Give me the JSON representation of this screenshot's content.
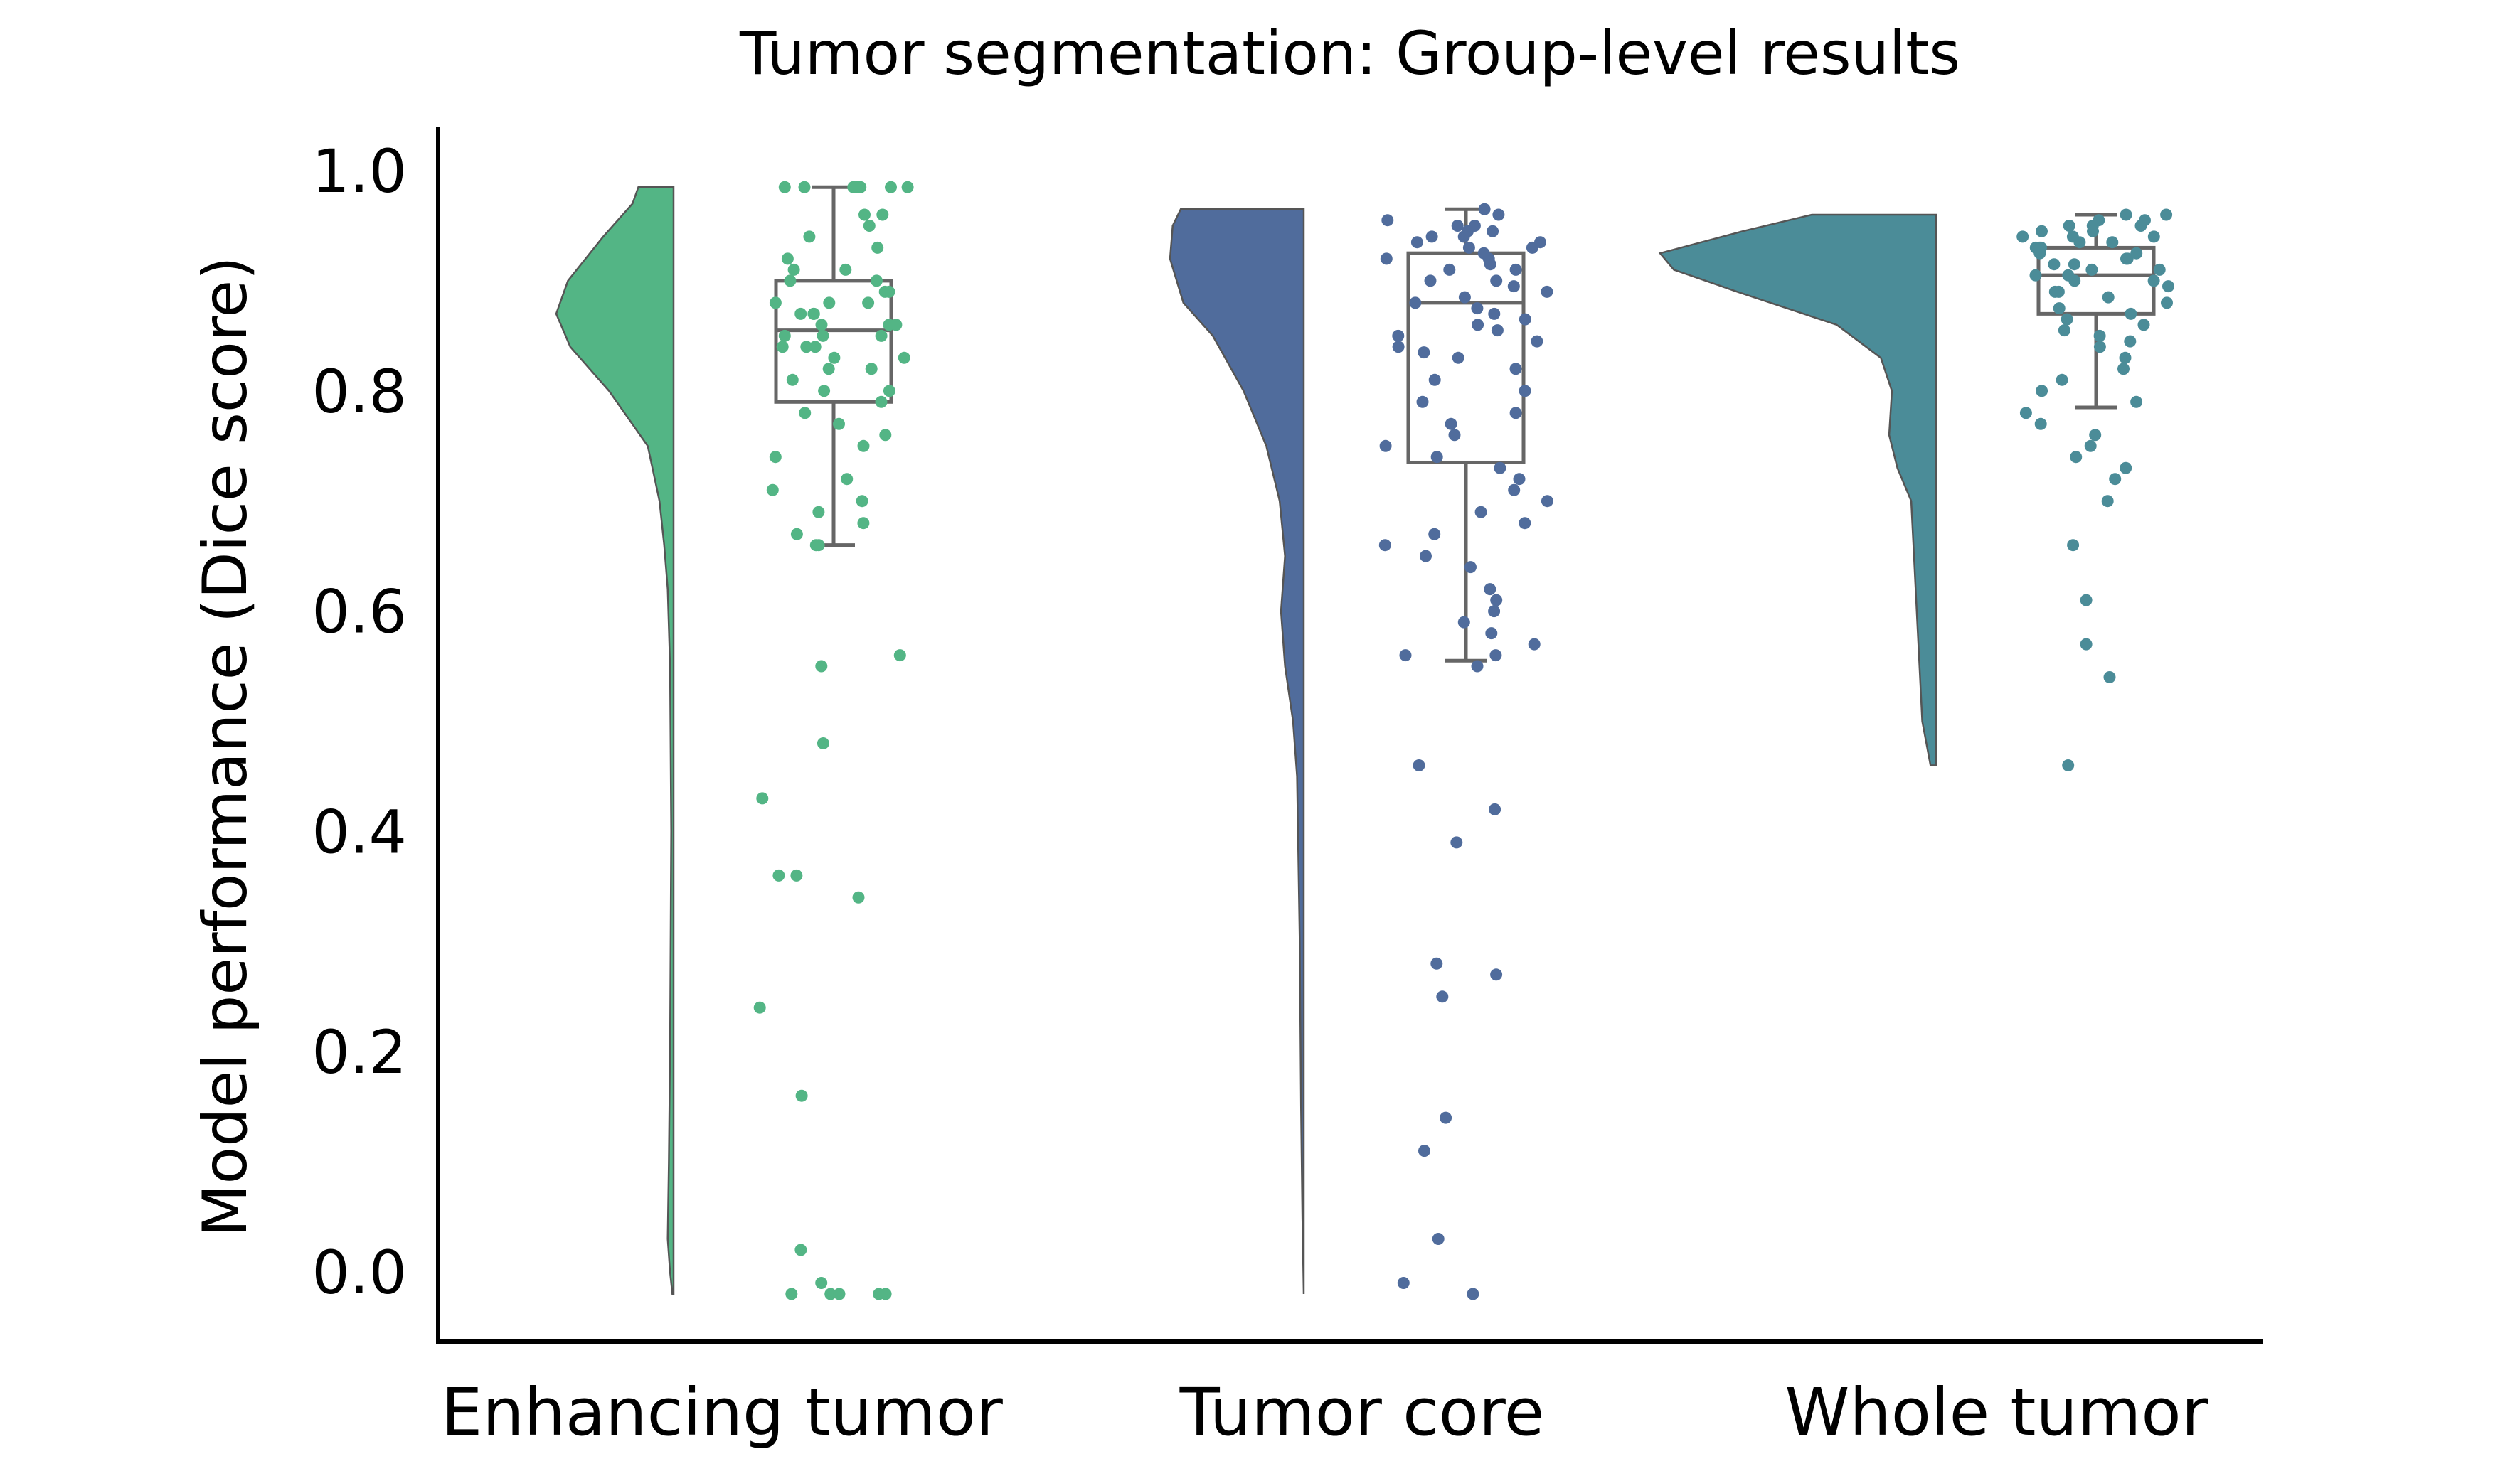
{
  "chart_data": {
    "type": "raincloud",
    "title": "Tumor segmentation: Group-level results",
    "ylabel": "Model performance (Dice score)",
    "xlabel": "",
    "ylim": [
      -0.06,
      1.05
    ],
    "yticks": [
      0.0,
      0.2,
      0.4,
      0.6,
      0.8,
      1.0
    ],
    "ytick_labels": [
      "0.0",
      "0.2",
      "0.4",
      "0.6",
      "0.8",
      "1.0"
    ],
    "categories": [
      "Enhancing tumor",
      "Tumor core",
      "Whole tumor"
    ],
    "series": [
      {
        "name": "Enhancing tumor",
        "color": "#53b585",
        "violin": {
          "min": -0.02,
          "max": 0.985,
          "peak": 0.87,
          "profile": [
            [
              -0.02,
              0.01
            ],
            [
              0.0,
              0.03
            ],
            [
              0.03,
              0.05
            ],
            [
              0.1,
              0.04
            ],
            [
              0.2,
              0.03
            ],
            [
              0.4,
              0.02
            ],
            [
              0.55,
              0.03
            ],
            [
              0.62,
              0.05
            ],
            [
              0.66,
              0.08
            ],
            [
              0.7,
              0.12
            ],
            [
              0.75,
              0.22
            ],
            [
              0.8,
              0.55
            ],
            [
              0.84,
              0.88
            ],
            [
              0.87,
              1.0
            ],
            [
              0.9,
              0.9
            ],
            [
              0.94,
              0.6
            ],
            [
              0.97,
              0.35
            ],
            [
              0.985,
              0.3
            ]
          ]
        },
        "box": {
          "whisker_low": 0.66,
          "q1": 0.79,
          "median": 0.855,
          "q3": 0.9,
          "whisker_high": 0.985
        },
        "points": [
          0.985,
          0.985,
          0.985,
          0.985,
          0.985,
          0.985,
          0.985,
          0.985,
          0.96,
          0.96,
          0.95,
          0.94,
          0.93,
          0.92,
          0.91,
          0.91,
          0.9,
          0.9,
          0.89,
          0.89,
          0.88,
          0.88,
          0.88,
          0.87,
          0.87,
          0.87,
          0.86,
          0.86,
          0.86,
          0.85,
          0.85,
          0.85,
          0.84,
          0.84,
          0.84,
          0.83,
          0.83,
          0.82,
          0.82,
          0.81,
          0.8,
          0.8,
          0.79,
          0.78,
          0.77,
          0.76,
          0.75,
          0.74,
          0.72,
          0.71,
          0.7,
          0.69,
          0.68,
          0.67,
          0.66,
          0.66,
          0.55,
          0.56,
          0.48,
          0.43,
          0.36,
          0.36,
          0.34,
          0.24,
          0.16,
          0.02,
          -0.01,
          -0.02,
          -0.02,
          -0.02,
          -0.02,
          -0.02
        ]
      },
      {
        "name": "Tumor core",
        "color": "#506c9c",
        "violin": {
          "min": -0.02,
          "max": 0.965,
          "peak": 0.92,
          "profile": [
            [
              -0.02,
              0.0
            ],
            [
              0.05,
              0.01
            ],
            [
              0.15,
              0.02
            ],
            [
              0.3,
              0.03
            ],
            [
              0.45,
              0.05
            ],
            [
              0.5,
              0.08
            ],
            [
              0.55,
              0.14
            ],
            [
              0.6,
              0.17
            ],
            [
              0.65,
              0.14
            ],
            [
              0.7,
              0.18
            ],
            [
              0.75,
              0.28
            ],
            [
              0.8,
              0.45
            ],
            [
              0.85,
              0.68
            ],
            [
              0.88,
              0.9
            ],
            [
              0.92,
              1.0
            ],
            [
              0.95,
              0.98
            ],
            [
              0.965,
              0.92
            ]
          ]
        },
        "box": {
          "whisker_low": 0.555,
          "q1": 0.735,
          "median": 0.88,
          "q3": 0.925,
          "whisker_high": 0.965
        },
        "points": [
          0.965,
          0.96,
          0.955,
          0.95,
          0.95,
          0.945,
          0.945,
          0.94,
          0.94,
          0.935,
          0.935,
          0.93,
          0.93,
          0.925,
          0.92,
          0.92,
          0.915,
          0.91,
          0.91,
          0.9,
          0.9,
          0.895,
          0.89,
          0.885,
          0.88,
          0.875,
          0.87,
          0.865,
          0.86,
          0.855,
          0.85,
          0.845,
          0.84,
          0.835,
          0.83,
          0.82,
          0.81,
          0.8,
          0.79,
          0.78,
          0.77,
          0.76,
          0.75,
          0.74,
          0.73,
          0.72,
          0.71,
          0.7,
          0.69,
          0.68,
          0.67,
          0.66,
          0.65,
          0.64,
          0.62,
          0.61,
          0.6,
          0.59,
          0.58,
          0.57,
          0.56,
          0.56,
          0.55,
          0.46,
          0.42,
          0.39,
          0.28,
          0.27,
          0.25,
          0.14,
          0.11,
          0.03,
          -0.01,
          -0.02
        ]
      },
      {
        "name": "Whole tumor",
        "color": "#4b8c98",
        "violin": {
          "min": 0.46,
          "max": 0.96,
          "peak": 0.92,
          "profile": [
            [
              0.46,
              0.02
            ],
            [
              0.5,
              0.05
            ],
            [
              0.55,
              0.06
            ],
            [
              0.6,
              0.07
            ],
            [
              0.65,
              0.08
            ],
            [
              0.7,
              0.09
            ],
            [
              0.73,
              0.14
            ],
            [
              0.76,
              0.17
            ],
            [
              0.8,
              0.16
            ],
            [
              0.83,
              0.2
            ],
            [
              0.86,
              0.36
            ],
            [
              0.89,
              0.72
            ],
            [
              0.91,
              0.95
            ],
            [
              0.925,
              1.0
            ],
            [
              0.945,
              0.7
            ],
            [
              0.96,
              0.45
            ]
          ]
        },
        "box": {
          "whisker_low": 0.785,
          "q1": 0.87,
          "median": 0.905,
          "q3": 0.93,
          "whisker_high": 0.96
        },
        "points": [
          0.96,
          0.96,
          0.955,
          0.955,
          0.95,
          0.95,
          0.95,
          0.945,
          0.945,
          0.94,
          0.94,
          0.94,
          0.935,
          0.935,
          0.93,
          0.93,
          0.93,
          0.925,
          0.925,
          0.92,
          0.92,
          0.915,
          0.915,
          0.91,
          0.91,
          0.905,
          0.905,
          0.9,
          0.9,
          0.895,
          0.89,
          0.89,
          0.885,
          0.88,
          0.875,
          0.87,
          0.865,
          0.86,
          0.855,
          0.85,
          0.845,
          0.84,
          0.83,
          0.82,
          0.81,
          0.8,
          0.79,
          0.78,
          0.77,
          0.76,
          0.75,
          0.74,
          0.73,
          0.72,
          0.7,
          0.66,
          0.61,
          0.57,
          0.54,
          0.46
        ]
      }
    ]
  }
}
